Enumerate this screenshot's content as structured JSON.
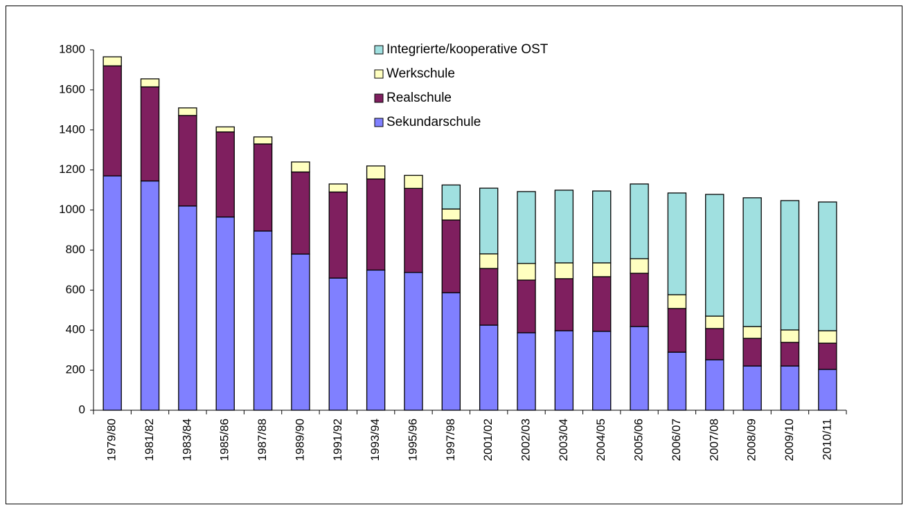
{
  "chart_data": {
    "type": "stacked_bar",
    "categories": [
      "1979/80",
      "1981/82",
      "1983/84",
      "1985/86",
      "1987/88",
      "1989/90",
      "1991/92",
      "1993/94",
      "1995/96",
      "1997/98",
      "2001/02",
      "2002/03",
      "2003/04",
      "2004/05",
      "2005/06",
      "2006/07",
      "2007/08",
      "2008/09",
      "2009/10",
      "2010/11"
    ],
    "series": [
      {
        "name": "Sekundarschule",
        "color": "#8080ff",
        "values": [
          1170,
          1145,
          1020,
          965,
          895,
          780,
          660,
          700,
          688,
          587,
          425,
          387,
          397,
          394,
          418,
          290,
          252,
          221,
          221,
          204
        ]
      },
      {
        "name": "Realschule",
        "color": "#7f1f5f",
        "values": [
          550,
          470,
          452,
          425,
          435,
          410,
          430,
          455,
          420,
          363,
          283,
          263,
          260,
          273,
          266,
          218,
          156,
          138,
          118,
          131
        ]
      },
      {
        "name": "Werkschule",
        "color": "#ffffc0",
        "values": [
          45,
          40,
          38,
          25,
          35,
          50,
          40,
          65,
          65,
          55,
          73,
          83,
          79,
          69,
          73,
          69,
          62,
          59,
          62,
          62
        ]
      },
      {
        "name": "Integrierte/kooperative OST",
        "color": "#a0e0e0",
        "values": [
          null,
          null,
          null,
          null,
          null,
          null,
          null,
          null,
          null,
          120,
          328,
          359,
          363,
          359,
          373,
          508,
          608,
          643,
          646,
          643
        ]
      }
    ],
    "ylim": [
      0,
      1800
    ],
    "yticks": [
      0,
      200,
      400,
      600,
      800,
      1000,
      1200,
      1400,
      1600,
      1800
    ],
    "legend": "top"
  }
}
